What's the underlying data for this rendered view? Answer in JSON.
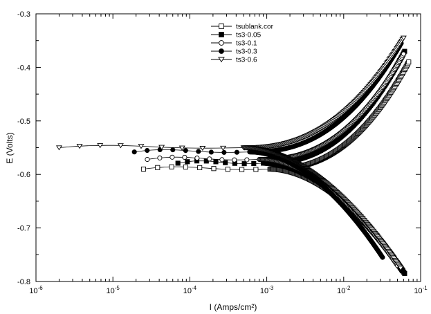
{
  "chart_data": {
    "type": "scatter",
    "xlabel": "I (Amps/cm²)",
    "ylabel": "E (Volts)",
    "xscale": "log",
    "xlim": [
      1e-06,
      0.1
    ],
    "ylim": [
      -0.8,
      -0.3
    ],
    "x_ticks": [
      {
        "value": 1e-06,
        "label": "10-6",
        "base": "10",
        "exp": "-6"
      },
      {
        "value": 1e-05,
        "label": "10-5",
        "base": "10",
        "exp": "-5"
      },
      {
        "value": 0.0001,
        "label": "10-4",
        "base": "10",
        "exp": "-4"
      },
      {
        "value": 0.001,
        "label": "10-3",
        "base": "10",
        "exp": "-3"
      },
      {
        "value": 0.01,
        "label": "10-2",
        "base": "10",
        "exp": "-2"
      },
      {
        "value": 0.1,
        "label": "10-1",
        "base": "10",
        "exp": "-1"
      }
    ],
    "y_ticks": [
      {
        "value": -0.3,
        "label": "-0.3"
      },
      {
        "value": -0.4,
        "label": "-0.4"
      },
      {
        "value": -0.5,
        "label": "-0.5"
      },
      {
        "value": -0.6,
        "label": "-0.6"
      },
      {
        "value": -0.7,
        "label": "-0.7"
      },
      {
        "value": -0.8,
        "label": "-0.8"
      }
    ],
    "grid": false,
    "legend": "top-center",
    "series": [
      {
        "name": "tsublank.cor",
        "marker": "square-open",
        "ecorr": -0.59,
        "icorr": 0.0011,
        "start_i": 2.5e-05,
        "anodic_end": [
          0.07,
          -0.39
        ],
        "cathodic_end": [
          0.058,
          -0.78
        ]
      },
      {
        "name": "ts3-0.05",
        "marker": "square-filled",
        "ecorr": -0.579,
        "icorr": 0.0009,
        "start_i": 7e-05,
        "anodic_end": [
          0.062,
          -0.37
        ],
        "cathodic_end": [
          0.062,
          -0.785
        ]
      },
      {
        "name": "ts3-0.1",
        "marker": "circle-open",
        "ecorr": -0.572,
        "icorr": 0.0008,
        "start_i": 2.8e-05,
        "anodic_end": [
          0.06,
          -0.375
        ],
        "cathodic_end": [
          0.05,
          -0.77
        ]
      },
      {
        "name": "ts3-0.3",
        "marker": "circle-filled",
        "ecorr": -0.558,
        "icorr": 0.0006,
        "start_i": 1.9e-05,
        "anodic_end": [
          0.056,
          -0.355
        ],
        "cathodic_end": [
          0.032,
          -0.755
        ]
      },
      {
        "name": "ts3-0.6",
        "marker": "triangle-down-open",
        "ecorr": -0.55,
        "icorr": 0.0005,
        "start_i": 2e-06,
        "anodic_end": [
          0.06,
          -0.345
        ],
        "cathodic_end": [
          0.055,
          -0.775
        ]
      }
    ]
  }
}
